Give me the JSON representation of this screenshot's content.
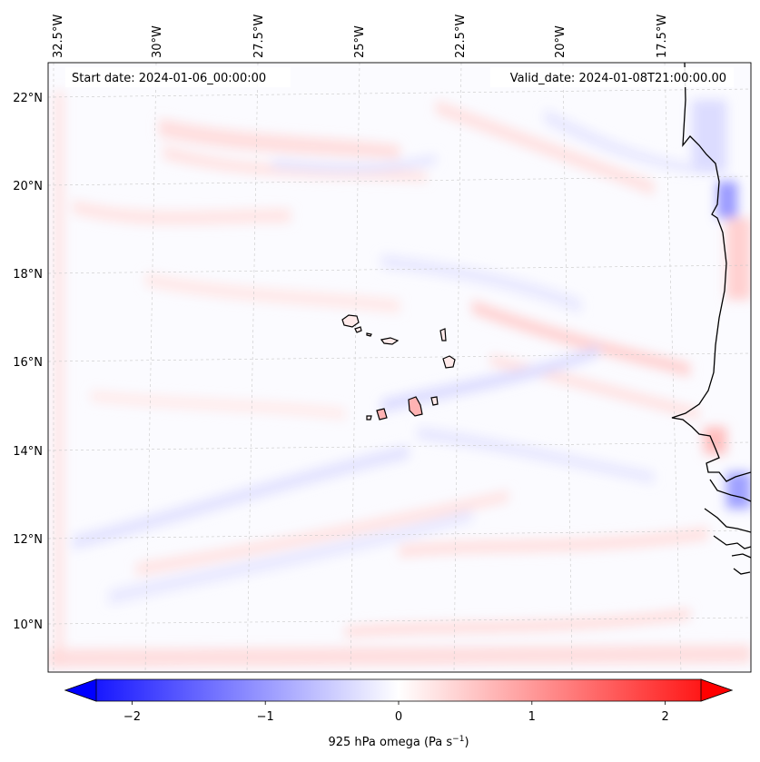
{
  "map": {
    "start_date": "Start date: 2024-01-06_00:00:00",
    "valid_date": "Valid_date: 2024-01-08T21:00:00.00",
    "lon_labels": [
      "32.5°W",
      "30°W",
      "27.5°W",
      "25°W",
      "22.5°W",
      "20°W",
      "17.5°W"
    ],
    "lat_labels": [
      "22°N",
      "20°N",
      "18°N",
      "16°N",
      "14°N",
      "12°N",
      "10°N"
    ]
  },
  "colorbar": {
    "label_main": "925 hPa omega (Pa s",
    "label_exp": "−1",
    "label_close": ")",
    "ticks": [
      "−2",
      "−1",
      "0",
      "1",
      "2"
    ],
    "tick_values": [
      -2,
      -1,
      0,
      1,
      2
    ],
    "range": [
      -2.5,
      2.5
    ],
    "cmap": "bwr",
    "color_low": "#0000ff",
    "color_mid": "#ffffff",
    "color_high": "#ff0000"
  }
}
